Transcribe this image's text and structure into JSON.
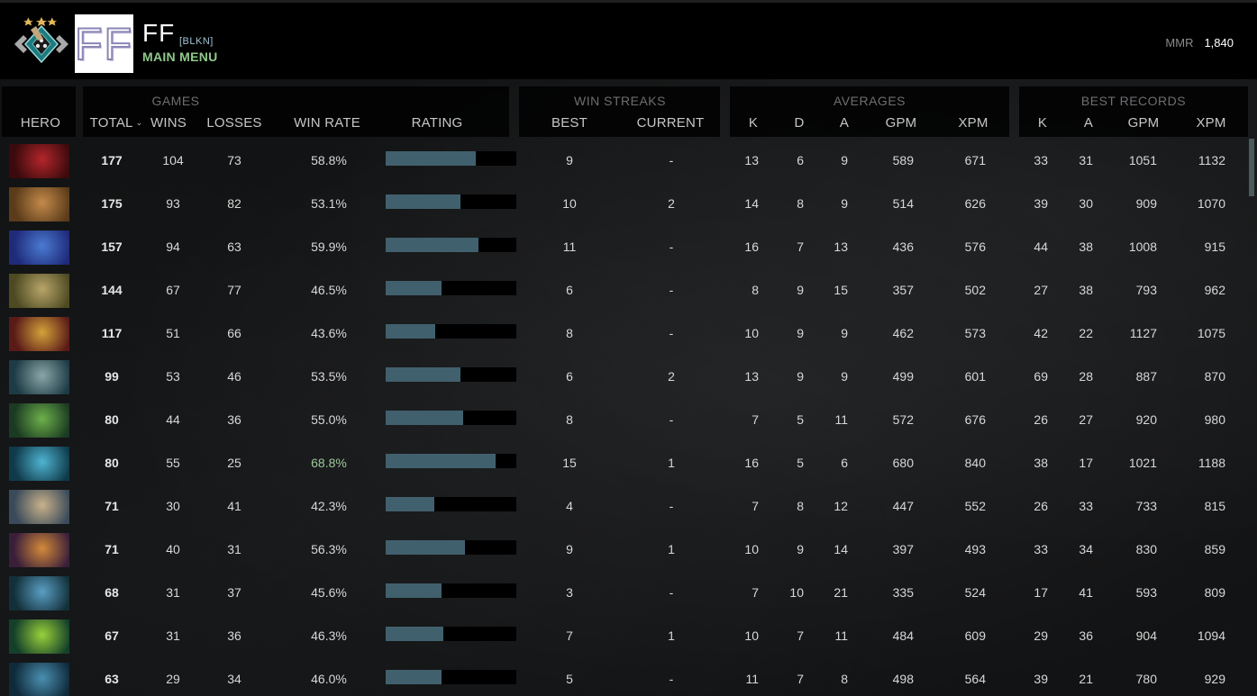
{
  "header": {
    "player_name": "FF",
    "avatar_text": "FF",
    "player_tag": "[BLKN]",
    "back_link": "MAIN MENU",
    "mmr_label": "MMR",
    "mmr_value": "1,840"
  },
  "colors": {
    "bar_fill": "#41606e",
    "bar_track": "#000000",
    "highlight_winrate": "#9dc89a",
    "main_menu": "#8fc98a",
    "tag": "#9fc4d6"
  },
  "groups": {
    "games": "GAMES",
    "win_streaks": "WIN STREAKS",
    "averages": "AVERAGES",
    "best_records": "BEST RECORDS"
  },
  "columns": {
    "hero": "HERO",
    "total": "TOTAL",
    "wins": "WINS",
    "losses": "LOSSES",
    "win_rate": "WIN RATE",
    "rating": "RATING",
    "streak_best": "BEST",
    "streak_current": "CURRENT",
    "avg_k": "K",
    "avg_d": "D",
    "avg_a": "A",
    "avg_gpm": "GPM",
    "avg_xpm": "XPM",
    "best_k": "K",
    "best_a": "A",
    "best_gpm": "GPM",
    "best_xpm": "XPM"
  },
  "sort": {
    "column": "total",
    "direction": "desc",
    "icon": "chevron-down-icon"
  },
  "rows": [
    {
      "hero_icon": "hero-portrait-red-dark",
      "c1": "#3a0a0c",
      "c2": "#b3262b",
      "total": "177",
      "wins": "104",
      "losses": "73",
      "win_rate": "58.8%",
      "rating_pct": 69,
      "streak_best": "9",
      "streak_current": "-",
      "avg_k": "13",
      "avg_d": "6",
      "avg_a": "9",
      "avg_gpm": "589",
      "avg_xpm": "671",
      "best_k": "33",
      "best_a": "31",
      "best_gpm": "1051",
      "best_xpm": "1132"
    },
    {
      "hero_icon": "hero-portrait-monkey",
      "c1": "#5a3b1a",
      "c2": "#c48a4a",
      "total": "175",
      "wins": "93",
      "losses": "82",
      "win_rate": "53.1%",
      "rating_pct": 57,
      "streak_best": "10",
      "streak_current": "2",
      "avg_k": "14",
      "avg_d": "8",
      "avg_a": "9",
      "avg_gpm": "514",
      "avg_xpm": "626",
      "best_k": "39",
      "best_a": "30",
      "best_gpm": "909",
      "best_xpm": "1070"
    },
    {
      "hero_icon": "hero-portrait-blue-horned",
      "c1": "#1f2a7a",
      "c2": "#4a7bd1",
      "total": "157",
      "wins": "94",
      "losses": "63",
      "win_rate": "59.9%",
      "rating_pct": 71,
      "streak_best": "11",
      "streak_current": "-",
      "avg_k": "16",
      "avg_d": "7",
      "avg_a": "13",
      "avg_gpm": "436",
      "avg_xpm": "576",
      "best_k": "44",
      "best_a": "38",
      "best_gpm": "1008",
      "best_xpm": "915"
    },
    {
      "hero_icon": "hero-portrait-ogre",
      "c1": "#4d4a22",
      "c2": "#b8a56a",
      "total": "144",
      "wins": "67",
      "losses": "77",
      "win_rate": "46.5%",
      "rating_pct": 43,
      "streak_best": "6",
      "streak_current": "-",
      "avg_k": "8",
      "avg_d": "9",
      "avg_a": "15",
      "avg_gpm": "357",
      "avg_xpm": "502",
      "best_k": "27",
      "best_a": "38",
      "best_gpm": "793",
      "best_xpm": "962"
    },
    {
      "hero_icon": "hero-portrait-gold-helm",
      "c1": "#5a1a18",
      "c2": "#d4a23a",
      "total": "117",
      "wins": "51",
      "losses": "66",
      "win_rate": "43.6%",
      "rating_pct": 38,
      "streak_best": "8",
      "streak_current": "-",
      "avg_k": "10",
      "avg_d": "9",
      "avg_a": "9",
      "avg_gpm": "462",
      "avg_xpm": "573",
      "best_k": "42",
      "best_a": "22",
      "best_gpm": "1127",
      "best_xpm": "1075"
    },
    {
      "hero_icon": "hero-portrait-fish-mouth",
      "c1": "#1d3b45",
      "c2": "#8ba6a8",
      "total": "99",
      "wins": "53",
      "losses": "46",
      "win_rate": "53.5%",
      "rating_pct": 57,
      "streak_best": "6",
      "streak_current": "2",
      "avg_k": "13",
      "avg_d": "9",
      "avg_a": "9",
      "avg_gpm": "499",
      "avg_xpm": "601",
      "best_k": "69",
      "best_a": "28",
      "best_gpm": "887",
      "best_xpm": "870"
    },
    {
      "hero_icon": "hero-portrait-green-gorgon",
      "c1": "#1a3a22",
      "c2": "#6db04a",
      "total": "80",
      "wins": "44",
      "losses": "36",
      "win_rate": "55.0%",
      "rating_pct": 59,
      "streak_best": "8",
      "streak_current": "-",
      "avg_k": "7",
      "avg_d": "5",
      "avg_a": "11",
      "avg_gpm": "572",
      "avg_xpm": "676",
      "best_k": "26",
      "best_a": "27",
      "best_gpm": "920",
      "best_xpm": "980"
    },
    {
      "hero_icon": "hero-portrait-water-serpent",
      "c1": "#0f3a4a",
      "c2": "#4fb4d1",
      "total": "80",
      "wins": "55",
      "losses": "25",
      "win_rate": "68.8%",
      "win_rate_highlight": true,
      "rating_pct": 84,
      "streak_best": "15",
      "streak_current": "1",
      "avg_k": "16",
      "avg_d": "5",
      "avg_a": "6",
      "avg_gpm": "680",
      "avg_xpm": "840",
      "best_k": "38",
      "best_a": "17",
      "best_gpm": "1021",
      "best_xpm": "1188"
    },
    {
      "hero_icon": "hero-portrait-bearded-monk",
      "c1": "#3a4a5a",
      "c2": "#c9b28a",
      "total": "71",
      "wins": "30",
      "losses": "41",
      "win_rate": "42.3%",
      "rating_pct": 37,
      "streak_best": "4",
      "streak_current": "-",
      "avg_k": "7",
      "avg_d": "8",
      "avg_a": "12",
      "avg_gpm": "447",
      "avg_xpm": "552",
      "best_k": "26",
      "best_a": "33",
      "best_gpm": "733",
      "best_xpm": "815"
    },
    {
      "hero_icon": "hero-portrait-striped-assassin",
      "c1": "#3a1f3a",
      "c2": "#d48a3a",
      "total": "71",
      "wins": "40",
      "losses": "31",
      "win_rate": "56.3%",
      "rating_pct": 61,
      "streak_best": "9",
      "streak_current": "1",
      "avg_k": "10",
      "avg_d": "9",
      "avg_a": "14",
      "avg_gpm": "397",
      "avg_xpm": "493",
      "best_k": "33",
      "best_a": "34",
      "best_gpm": "830",
      "best_xpm": "859"
    },
    {
      "hero_icon": "hero-portrait-blue-ogre",
      "c1": "#13303a",
      "c2": "#5a9fc4",
      "total": "68",
      "wins": "31",
      "losses": "37",
      "win_rate": "45.6%",
      "rating_pct": 43,
      "streak_best": "3",
      "streak_current": "-",
      "avg_k": "7",
      "avg_d": "10",
      "avg_a": "21",
      "avg_gpm": "335",
      "avg_xpm": "524",
      "best_k": "17",
      "best_a": "41",
      "best_gpm": "593",
      "best_xpm": "809"
    },
    {
      "hero_icon": "hero-portrait-green-dragon",
      "c1": "#14402a",
      "c2": "#9ad13a",
      "total": "67",
      "wins": "31",
      "losses": "36",
      "win_rate": "46.3%",
      "rating_pct": 44,
      "streak_best": "7",
      "streak_current": "1",
      "avg_k": "10",
      "avg_d": "7",
      "avg_a": "11",
      "avg_gpm": "484",
      "avg_xpm": "609",
      "best_k": "29",
      "best_a": "36",
      "best_gpm": "904",
      "best_xpm": "1094"
    },
    {
      "hero_icon": "hero-portrait-steel-knight",
      "c1": "#0f2a3a",
      "c2": "#4a8fb0",
      "total": "63",
      "wins": "29",
      "losses": "34",
      "win_rate": "46.0%",
      "rating_pct": 43,
      "streak_best": "5",
      "streak_current": "-",
      "avg_k": "11",
      "avg_d": "7",
      "avg_a": "8",
      "avg_gpm": "498",
      "avg_xpm": "564",
      "best_k": "39",
      "best_a": "21",
      "best_gpm": "780",
      "best_xpm": "929"
    }
  ]
}
